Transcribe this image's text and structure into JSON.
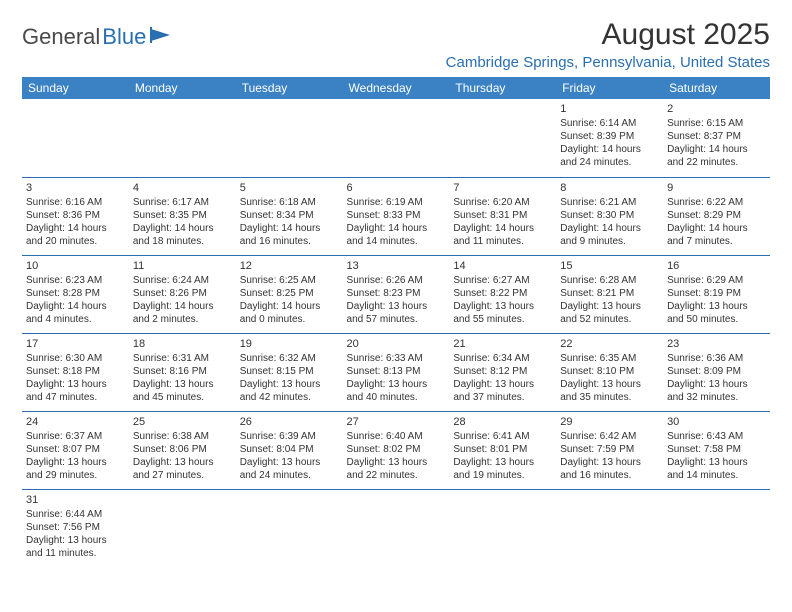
{
  "logo": {
    "text1": "General",
    "text2": "Blue"
  },
  "title": "August 2025",
  "location": "Cambridge Springs, Pennsylvania, United States",
  "colors": {
    "header_bg": "#3b82c4",
    "header_text": "#ffffff",
    "border": "#2a6fb0",
    "accent": "#2a6fb0",
    "text": "#333333",
    "background": "#ffffff"
  },
  "typography": {
    "title_fontsize": 30,
    "location_fontsize": 15,
    "dayheader_fontsize": 12,
    "daynum_fontsize": 11,
    "body_fontsize": 10
  },
  "day_headers": [
    "Sunday",
    "Monday",
    "Tuesday",
    "Wednesday",
    "Thursday",
    "Friday",
    "Saturday"
  ],
  "weeks": [
    [
      null,
      null,
      null,
      null,
      null,
      {
        "n": "1",
        "sr": "Sunrise: 6:14 AM",
        "ss": "Sunset: 8:39 PM",
        "d1": "Daylight: 14 hours",
        "d2": "and 24 minutes."
      },
      {
        "n": "2",
        "sr": "Sunrise: 6:15 AM",
        "ss": "Sunset: 8:37 PM",
        "d1": "Daylight: 14 hours",
        "d2": "and 22 minutes."
      }
    ],
    [
      {
        "n": "3",
        "sr": "Sunrise: 6:16 AM",
        "ss": "Sunset: 8:36 PM",
        "d1": "Daylight: 14 hours",
        "d2": "and 20 minutes."
      },
      {
        "n": "4",
        "sr": "Sunrise: 6:17 AM",
        "ss": "Sunset: 8:35 PM",
        "d1": "Daylight: 14 hours",
        "d2": "and 18 minutes."
      },
      {
        "n": "5",
        "sr": "Sunrise: 6:18 AM",
        "ss": "Sunset: 8:34 PM",
        "d1": "Daylight: 14 hours",
        "d2": "and 16 minutes."
      },
      {
        "n": "6",
        "sr": "Sunrise: 6:19 AM",
        "ss": "Sunset: 8:33 PM",
        "d1": "Daylight: 14 hours",
        "d2": "and 14 minutes."
      },
      {
        "n": "7",
        "sr": "Sunrise: 6:20 AM",
        "ss": "Sunset: 8:31 PM",
        "d1": "Daylight: 14 hours",
        "d2": "and 11 minutes."
      },
      {
        "n": "8",
        "sr": "Sunrise: 6:21 AM",
        "ss": "Sunset: 8:30 PM",
        "d1": "Daylight: 14 hours",
        "d2": "and 9 minutes."
      },
      {
        "n": "9",
        "sr": "Sunrise: 6:22 AM",
        "ss": "Sunset: 8:29 PM",
        "d1": "Daylight: 14 hours",
        "d2": "and 7 minutes."
      }
    ],
    [
      {
        "n": "10",
        "sr": "Sunrise: 6:23 AM",
        "ss": "Sunset: 8:28 PM",
        "d1": "Daylight: 14 hours",
        "d2": "and 4 minutes."
      },
      {
        "n": "11",
        "sr": "Sunrise: 6:24 AM",
        "ss": "Sunset: 8:26 PM",
        "d1": "Daylight: 14 hours",
        "d2": "and 2 minutes."
      },
      {
        "n": "12",
        "sr": "Sunrise: 6:25 AM",
        "ss": "Sunset: 8:25 PM",
        "d1": "Daylight: 14 hours",
        "d2": "and 0 minutes."
      },
      {
        "n": "13",
        "sr": "Sunrise: 6:26 AM",
        "ss": "Sunset: 8:23 PM",
        "d1": "Daylight: 13 hours",
        "d2": "and 57 minutes."
      },
      {
        "n": "14",
        "sr": "Sunrise: 6:27 AM",
        "ss": "Sunset: 8:22 PM",
        "d1": "Daylight: 13 hours",
        "d2": "and 55 minutes."
      },
      {
        "n": "15",
        "sr": "Sunrise: 6:28 AM",
        "ss": "Sunset: 8:21 PM",
        "d1": "Daylight: 13 hours",
        "d2": "and 52 minutes."
      },
      {
        "n": "16",
        "sr": "Sunrise: 6:29 AM",
        "ss": "Sunset: 8:19 PM",
        "d1": "Daylight: 13 hours",
        "d2": "and 50 minutes."
      }
    ],
    [
      {
        "n": "17",
        "sr": "Sunrise: 6:30 AM",
        "ss": "Sunset: 8:18 PM",
        "d1": "Daylight: 13 hours",
        "d2": "and 47 minutes."
      },
      {
        "n": "18",
        "sr": "Sunrise: 6:31 AM",
        "ss": "Sunset: 8:16 PM",
        "d1": "Daylight: 13 hours",
        "d2": "and 45 minutes."
      },
      {
        "n": "19",
        "sr": "Sunrise: 6:32 AM",
        "ss": "Sunset: 8:15 PM",
        "d1": "Daylight: 13 hours",
        "d2": "and 42 minutes."
      },
      {
        "n": "20",
        "sr": "Sunrise: 6:33 AM",
        "ss": "Sunset: 8:13 PM",
        "d1": "Daylight: 13 hours",
        "d2": "and 40 minutes."
      },
      {
        "n": "21",
        "sr": "Sunrise: 6:34 AM",
        "ss": "Sunset: 8:12 PM",
        "d1": "Daylight: 13 hours",
        "d2": "and 37 minutes."
      },
      {
        "n": "22",
        "sr": "Sunrise: 6:35 AM",
        "ss": "Sunset: 8:10 PM",
        "d1": "Daylight: 13 hours",
        "d2": "and 35 minutes."
      },
      {
        "n": "23",
        "sr": "Sunrise: 6:36 AM",
        "ss": "Sunset: 8:09 PM",
        "d1": "Daylight: 13 hours",
        "d2": "and 32 minutes."
      }
    ],
    [
      {
        "n": "24",
        "sr": "Sunrise: 6:37 AM",
        "ss": "Sunset: 8:07 PM",
        "d1": "Daylight: 13 hours",
        "d2": "and 29 minutes."
      },
      {
        "n": "25",
        "sr": "Sunrise: 6:38 AM",
        "ss": "Sunset: 8:06 PM",
        "d1": "Daylight: 13 hours",
        "d2": "and 27 minutes."
      },
      {
        "n": "26",
        "sr": "Sunrise: 6:39 AM",
        "ss": "Sunset: 8:04 PM",
        "d1": "Daylight: 13 hours",
        "d2": "and 24 minutes."
      },
      {
        "n": "27",
        "sr": "Sunrise: 6:40 AM",
        "ss": "Sunset: 8:02 PM",
        "d1": "Daylight: 13 hours",
        "d2": "and 22 minutes."
      },
      {
        "n": "28",
        "sr": "Sunrise: 6:41 AM",
        "ss": "Sunset: 8:01 PM",
        "d1": "Daylight: 13 hours",
        "d2": "and 19 minutes."
      },
      {
        "n": "29",
        "sr": "Sunrise: 6:42 AM",
        "ss": "Sunset: 7:59 PM",
        "d1": "Daylight: 13 hours",
        "d2": "and 16 minutes."
      },
      {
        "n": "30",
        "sr": "Sunrise: 6:43 AM",
        "ss": "Sunset: 7:58 PM",
        "d1": "Daylight: 13 hours",
        "d2": "and 14 minutes."
      }
    ],
    [
      {
        "n": "31",
        "sr": "Sunrise: 6:44 AM",
        "ss": "Sunset: 7:56 PM",
        "d1": "Daylight: 13 hours",
        "d2": "and 11 minutes."
      },
      null,
      null,
      null,
      null,
      null,
      null
    ]
  ]
}
